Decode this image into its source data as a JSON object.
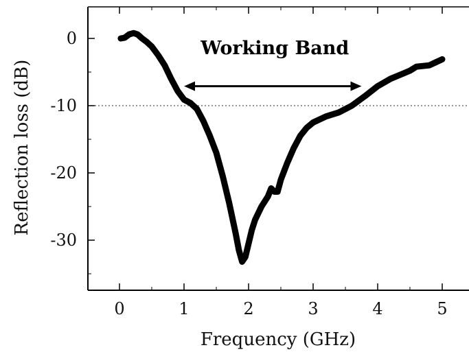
{
  "chart_data": {
    "type": "line",
    "title": "",
    "xlabel": "Frequency (GHz)",
    "ylabel": "Reflection loss (dB)",
    "xlim": [
      -0.5,
      5.5
    ],
    "ylim": [
      -37,
      4.5
    ],
    "x_ticks": [
      0,
      1,
      2,
      3,
      4,
      5
    ],
    "x_tick_labels": [
      "0",
      "1",
      "2",
      "3",
      "4",
      "5"
    ],
    "y_ticks": [
      0,
      -10,
      -20,
      -30
    ],
    "y_tick_labels": [
      "0",
      "-10",
      "-20",
      "-30"
    ],
    "grid": false,
    "reference_line": {
      "y": -10,
      "style": "dotted"
    },
    "annotation": {
      "text": "Working Band",
      "arrow_from_x": 1.0,
      "arrow_to_x": 3.75,
      "arrow_y": -7.1
    },
    "series": [
      {
        "color": "#000000",
        "x": [
          0.02,
          0.08,
          0.15,
          0.22,
          0.28,
          0.35,
          0.42,
          0.5,
          0.6,
          0.7,
          0.8,
          0.9,
          1.0,
          1.1,
          1.2,
          1.3,
          1.4,
          1.5,
          1.6,
          1.7,
          1.8,
          1.85,
          1.9,
          1.95,
          2.0,
          2.05,
          2.1,
          2.2,
          2.3,
          2.35,
          2.4,
          2.45,
          2.5,
          2.6,
          2.7,
          2.8,
          2.9,
          3.0,
          3.2,
          3.4,
          3.6,
          3.8,
          4.0,
          4.2,
          4.4,
          4.5,
          4.6,
          4.8,
          5.0
        ],
        "y": [
          0.0,
          0.1,
          0.6,
          0.8,
          0.6,
          0.0,
          -0.5,
          -1.2,
          -2.5,
          -4.0,
          -6.0,
          -7.8,
          -9.1,
          -9.6,
          -10.5,
          -12.3,
          -14.5,
          -17.0,
          -20.5,
          -24.5,
          -29.0,
          -31.5,
          -33.2,
          -32.5,
          -30.5,
          -28.5,
          -27.0,
          -25.0,
          -23.5,
          -22.3,
          -22.8,
          -22.8,
          -21.0,
          -18.5,
          -16.3,
          -14.5,
          -13.3,
          -12.5,
          -11.6,
          -11.0,
          -10.0,
          -8.6,
          -7.1,
          -6.0,
          -5.2,
          -4.8,
          -4.2,
          -4.0,
          -3.1
        ]
      }
    ]
  }
}
